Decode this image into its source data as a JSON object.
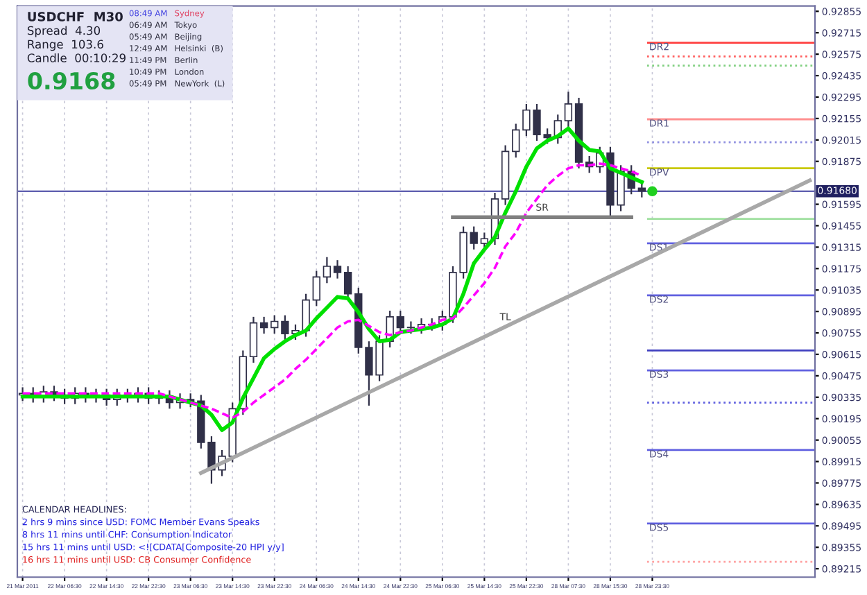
{
  "chart_data": {
    "type": "candlestick",
    "title": "USDCHF  M30",
    "categories": [
      "21 Mar 2011",
      null,
      null,
      null,
      "22 Mar 06:30",
      null,
      null,
      null,
      "22 Mar 14:30",
      null,
      null,
      null,
      "22 Mar 22:30",
      null,
      null,
      null,
      "23 Mar 06:30",
      null,
      null,
      null,
      "23 Mar 14:30",
      null,
      null,
      null,
      "23 Mar 22:30",
      null,
      null,
      null,
      "24 Mar 06:30",
      null,
      null,
      null,
      "24 Mar 14:30",
      null,
      null,
      null,
      "24 Mar 22:30",
      null,
      null,
      null,
      "25 Mar 06:30",
      null,
      null,
      null,
      "25 Mar 14:30",
      null,
      null,
      null,
      "25 Mar 22:30",
      null,
      null,
      null,
      "28 Mar 07:30",
      null,
      null,
      null,
      "28 Mar 15:30",
      null,
      null,
      null,
      "28 Mar 23:30",
      null,
      null,
      null,
      null,
      null,
      null,
      null,
      null,
      null,
      null,
      null,
      null,
      null,
      null,
      null
    ],
    "color": "#303048",
    "ohlc": [
      [
        0.9035,
        0.904,
        0.9031,
        0.9036
      ],
      [
        0.9036,
        0.904,
        0.903,
        0.9034
      ],
      [
        0.9034,
        0.9041,
        0.903,
        0.9037
      ],
      [
        0.9037,
        0.9041,
        0.9031,
        0.9035
      ],
      [
        0.9035,
        0.9039,
        0.9029,
        0.9033
      ],
      [
        0.9033,
        0.904,
        0.9029,
        0.9036
      ],
      [
        0.9036,
        0.904,
        0.903,
        0.9034
      ],
      [
        0.9034,
        0.9039,
        0.903,
        0.9035
      ],
      [
        0.9035,
        0.9039,
        0.9028,
        0.9032
      ],
      [
        0.9032,
        0.9039,
        0.9028,
        0.9035
      ],
      [
        0.9035,
        0.9039,
        0.903,
        0.9034
      ],
      [
        0.9034,
        0.904,
        0.903,
        0.9036
      ],
      [
        0.9036,
        0.904,
        0.9029,
        0.9033
      ],
      [
        0.9033,
        0.9038,
        0.9029,
        0.9034
      ],
      [
        0.9034,
        0.9038,
        0.9026,
        0.903
      ],
      [
        0.903,
        0.9036,
        0.9026,
        0.9032
      ],
      [
        0.9032,
        0.9036,
        0.9027,
        0.9031
      ],
      [
        0.9031,
        0.9035,
        0.9,
        0.9004
      ],
      [
        0.9004,
        0.9008,
        0.8977,
        0.8986
      ],
      [
        0.8986,
        0.8999,
        0.8982,
        0.8995
      ],
      [
        0.8995,
        0.903,
        0.8991,
        0.9026
      ],
      [
        0.9026,
        0.9064,
        0.9022,
        0.906
      ],
      [
        0.906,
        0.9086,
        0.9056,
        0.9082
      ],
      [
        0.9082,
        0.9086,
        0.9075,
        0.9079
      ],
      [
        0.9079,
        0.9087,
        0.9075,
        0.9083
      ],
      [
        0.9083,
        0.9087,
        0.9071,
        0.9075
      ],
      [
        0.9075,
        0.9081,
        0.9071,
        0.9077
      ],
      [
        0.9077,
        0.9101,
        0.9073,
        0.9097
      ],
      [
        0.9097,
        0.9116,
        0.9093,
        0.9112
      ],
      [
        0.9112,
        0.9125,
        0.9108,
        0.9119
      ],
      [
        0.9119,
        0.9123,
        0.9111,
        0.9115
      ],
      [
        0.9115,
        0.9119,
        0.9097,
        0.9101
      ],
      [
        0.9101,
        0.9105,
        0.9062,
        0.9066
      ],
      [
        0.9066,
        0.907,
        0.9028,
        0.9048
      ],
      [
        0.9048,
        0.9074,
        0.9044,
        0.907
      ],
      [
        0.907,
        0.909,
        0.9066,
        0.9086
      ],
      [
        0.9086,
        0.909,
        0.9075,
        0.9079
      ],
      [
        0.9079,
        0.9083,
        0.9075,
        0.9079
      ],
      [
        0.9079,
        0.9085,
        0.9075,
        0.9081
      ],
      [
        0.9081,
        0.9085,
        0.9077,
        0.9081
      ],
      [
        0.9081,
        0.909,
        0.9077,
        0.9086
      ],
      [
        0.9086,
        0.9119,
        0.9082,
        0.9115
      ],
      [
        0.9115,
        0.9145,
        0.9111,
        0.9141
      ],
      [
        0.9141,
        0.9145,
        0.913,
        0.9134
      ],
      [
        0.9134,
        0.9141,
        0.913,
        0.9137
      ],
      [
        0.9137,
        0.9167,
        0.9133,
        0.9163
      ],
      [
        0.9163,
        0.9198,
        0.9159,
        0.9194
      ],
      [
        0.9194,
        0.9212,
        0.919,
        0.9208
      ],
      [
        0.9208,
        0.9225,
        0.9204,
        0.9221
      ],
      [
        0.9221,
        0.9225,
        0.9201,
        0.9205
      ],
      [
        0.9205,
        0.9209,
        0.9199,
        0.9203
      ],
      [
        0.9203,
        0.9218,
        0.9199,
        0.9214
      ],
      [
        0.9214,
        0.9233,
        0.921,
        0.9225
      ],
      [
        0.9225,
        0.9229,
        0.9183,
        0.9187
      ],
      [
        0.9187,
        0.9191,
        0.918,
        0.9184
      ],
      [
        0.9184,
        0.9197,
        0.918,
        0.9193
      ],
      [
        0.9193,
        0.9197,
        0.9152,
        0.9159
      ],
      [
        0.9159,
        0.9185,
        0.9155,
        0.9181
      ],
      [
        0.9181,
        0.9185,
        0.9166,
        0.917
      ],
      [
        0.917,
        0.9174,
        0.9164,
        0.9168
      ],
      null,
      null,
      null,
      null,
      null,
      null,
      null,
      null,
      null,
      null,
      null,
      null,
      null,
      null,
      null,
      null
    ],
    "series": [
      {
        "type": "line",
        "color": "#00e000",
        "line_style": "solid",
        "values": [
          0.9034,
          0.9034,
          0.9034,
          0.9034,
          0.9034,
          0.9034,
          0.9034,
          0.9034,
          0.9034,
          0.9034,
          0.9034,
          0.9034,
          0.9034,
          0.9034,
          0.9034,
          0.9032,
          0.903,
          0.9028,
          0.9022,
          0.9012,
          0.9017,
          0.9033,
          0.9046,
          0.9059,
          0.9065,
          0.907,
          0.9074,
          0.9077,
          0.9085,
          0.9092,
          0.9099,
          0.9098,
          0.9089,
          0.9078,
          0.907,
          0.9071,
          0.9076,
          0.9077,
          0.9078,
          0.9079,
          0.9081,
          0.9085,
          0.9101,
          0.9121,
          0.913,
          0.9138,
          0.9154,
          0.9168,
          0.9184,
          0.9196,
          0.9201,
          0.9204,
          0.9209,
          0.9201,
          0.9195,
          0.9194,
          0.9183,
          0.918,
          0.9177,
          0.9174,
          null,
          null,
          null,
          null,
          null,
          null,
          null,
          null,
          null,
          null,
          null,
          null,
          null,
          null,
          null,
          null
        ]
      },
      {
        "type": "line",
        "color": "#ff00ff",
        "line_style": "dashed",
        "values": [
          0.9036,
          0.9036,
          0.9036,
          0.9036,
          0.9036,
          0.9036,
          0.9036,
          0.9036,
          0.9036,
          0.9036,
          0.9036,
          0.9036,
          0.9036,
          0.9036,
          0.9034,
          0.9032,
          0.903,
          0.9028,
          0.9026,
          0.9023,
          0.902,
          0.9024,
          0.903,
          0.9035,
          0.904,
          0.9045,
          0.9052,
          0.9058,
          0.9065,
          0.9072,
          0.9079,
          0.9083,
          0.9084,
          0.908,
          0.9076,
          0.9074,
          0.9076,
          0.9077,
          0.9079,
          0.9081,
          0.9084,
          0.9085,
          0.9092,
          0.91,
          0.9108,
          0.9118,
          0.9132,
          0.9141,
          0.9154,
          0.9163,
          0.9172,
          0.9178,
          0.9183,
          0.9185,
          0.9185,
          0.9186,
          0.9185,
          0.9183,
          0.9181,
          0.9178,
          null,
          null,
          null,
          null,
          null,
          null,
          null,
          null,
          null,
          null,
          null,
          null,
          null,
          null,
          null,
          null
        ]
      },
      {
        "type": "line",
        "name": "SR",
        "color": "#808080",
        "line_style": "solid",
        "values": [
          null,
          null,
          null,
          null,
          null,
          null,
          null,
          null,
          null,
          null,
          null,
          null,
          null,
          null,
          null,
          null,
          null,
          null,
          null,
          null,
          null,
          null,
          null,
          null,
          null,
          null,
          null,
          null,
          null,
          null,
          null,
          null,
          null,
          null,
          null,
          null,
          null,
          null,
          null,
          null,
          null,
          0.9151,
          null,
          null,
          null,
          null,
          null,
          null,
          null,
          null,
          null,
          null,
          null,
          null,
          null,
          null,
          null,
          null,
          0.9151,
          null,
          null,
          null,
          null,
          null,
          null,
          null,
          null,
          null,
          null,
          null,
          null,
          null,
          null,
          null,
          null,
          null
        ]
      },
      {
        "type": "line",
        "name": "TL",
        "color": "#a8a8a8",
        "line_style": "solid",
        "values": [
          null,
          null,
          null,
          null,
          null,
          null,
          null,
          null,
          null,
          null,
          null,
          null,
          null,
          null,
          null,
          null,
          null,
          0.8984,
          null,
          null,
          null,
          null,
          null,
          null,
          null,
          null,
          null,
          null,
          null,
          null,
          null,
          null,
          null,
          null,
          null,
          null,
          null,
          null,
          null,
          null,
          null,
          null,
          null,
          null,
          null,
          null,
          null,
          null,
          null,
          null,
          null,
          null,
          null,
          null,
          null,
          null,
          null,
          null,
          null,
          null,
          null,
          null,
          null,
          null,
          null,
          null,
          null,
          null,
          null,
          null,
          null,
          null,
          null,
          null,
          null,
          0.9175
        ]
      },
      {
        "type": "scatter",
        "color": "#20d020",
        "marker": "circle",
        "values": [
          null,
          null,
          null,
          null,
          null,
          null,
          null,
          null,
          null,
          null,
          null,
          null,
          null,
          null,
          null,
          null,
          null,
          null,
          null,
          null,
          null,
          null,
          null,
          null,
          null,
          null,
          null,
          null,
          null,
          null,
          null,
          null,
          null,
          null,
          null,
          null,
          null,
          null,
          null,
          null,
          null,
          null,
          null,
          null,
          null,
          null,
          null,
          null,
          null,
          null,
          null,
          null,
          null,
          null,
          null,
          null,
          null,
          null,
          null,
          null,
          0.9168,
          null,
          null,
          null,
          null,
          null,
          null,
          null,
          null,
          null,
          null,
          null,
          null,
          null,
          null,
          null
        ]
      }
    ],
    "ref_lines": [
      {
        "axis": "y",
        "value": 0.9168,
        "label": "0.91680",
        "color": "#4040a0",
        "line_style": "solid"
      },
      {
        "axis": "y",
        "value": 0.9265,
        "label": "DR2",
        "color": "#ff4040",
        "line_style": "solid"
      },
      {
        "axis": "y",
        "value": 0.9256,
        "label": null,
        "color": "#ff6060",
        "line_style": "dotted"
      },
      {
        "axis": "y",
        "value": 0.925,
        "label": null,
        "color": "#80d080",
        "line_style": "dotted"
      },
      {
        "axis": "y",
        "value": 0.9215,
        "label": "DR1",
        "color": "#ff9090",
        "line_style": "solid"
      },
      {
        "axis": "y",
        "value": 0.92,
        "label": null,
        "color": "#9090e0",
        "line_style": "dotted"
      },
      {
        "axis": "y",
        "value": 0.9183,
        "label": "DPV",
        "color": "#c8c800",
        "line_style": "solid"
      },
      {
        "axis": "y",
        "value": 0.915,
        "label": null,
        "color": "#a0e0a0",
        "line_style": "solid"
      },
      {
        "axis": "y",
        "value": 0.9134,
        "label": "DS1",
        "color": "#6060e0",
        "line_style": "solid"
      },
      {
        "axis": "y",
        "value": 0.91,
        "label": "DS2",
        "color": "#6060e0",
        "line_style": "solid"
      },
      {
        "axis": "y",
        "value": 0.9064,
        "label": null,
        "color": "#4040c0",
        "line_style": "solid"
      },
      {
        "axis": "y",
        "value": 0.9051,
        "label": "DS3",
        "color": "#6060e0",
        "line_style": "solid"
      },
      {
        "axis": "y",
        "value": 0.903,
        "label": null,
        "color": "#6060e0",
        "line_style": "dotted"
      },
      {
        "axis": "y",
        "value": 0.8999,
        "label": "DS4",
        "color": "#6060e0",
        "line_style": "solid"
      },
      {
        "axis": "y",
        "value": 0.8951,
        "label": "DS5",
        "color": "#6060e0",
        "line_style": "solid"
      },
      {
        "axis": "y",
        "value": 0.8926,
        "label": null,
        "color": "#ffa0a0",
        "line_style": "dotted"
      }
    ],
    "annotations": [
      "Spread  4.30",
      "Range  103.6",
      "Candle  00:10:29",
      "0.9168",
      "08:49 AM",
      "Sydney",
      "06:49 AM",
      "Tokyo",
      "05:49 AM",
      "Beijing",
      "12:49 AM",
      "Helsinki  (B)",
      "11:49 PM",
      "Berlin",
      "10:49 PM",
      "London",
      "05:49 PM",
      "NewYork  (L)",
      "CALENDAR HEADLINES:",
      "2 hrs 9 mins since USD: FOMC Member Evans Speaks",
      "8 hrs 11 mins until CHF: Consumption Indicator",
      "15 hrs 11 mins until USD: <![CDATA[Composite-20 HPI y/y]",
      "16 hrs 11 mins until USD: CB Consumer Confidence"
    ],
    "ylim": [
      0.8916,
      0.9289
    ],
    "yticks": [
      0.89215,
      0.89355,
      0.89495,
      0.89635,
      0.89775,
      0.89915,
      0.90055,
      0.90195,
      0.90335,
      0.90475,
      0.90615,
      0.90755,
      0.90895,
      0.91035,
      0.91175,
      0.91315,
      0.91455,
      0.91595,
      0.91875,
      0.92015,
      0.92155,
      0.92295,
      0.92435,
      0.92575,
      0.92715,
      0.92855
    ],
    "grid": "x",
    "legend": false
  }
}
